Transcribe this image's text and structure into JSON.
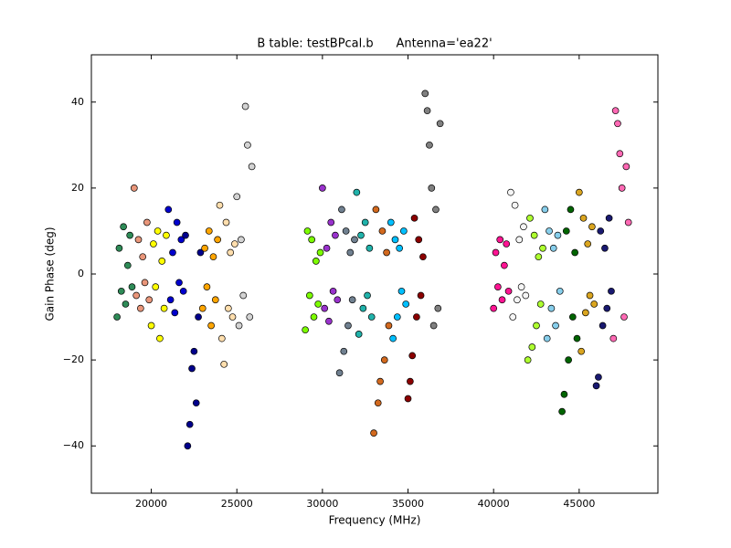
{
  "chart_data": {
    "type": "scatter",
    "title": "B table: testBPcal.b      Antenna='ea22'",
    "x_label": "Frequency (MHz)",
    "y_label": "Gain Phase (deg)",
    "xlim": [
      16500,
      49600
    ],
    "ylim": [
      -51,
      51
    ],
    "xticks": [
      20000,
      25000,
      30000,
      35000,
      40000,
      45000
    ],
    "yticks": [
      {
        "value": -40,
        "label": "−40"
      },
      {
        "value": -20,
        "label": "−20"
      },
      0,
      20,
      40
    ],
    "grid": false,
    "series": [
      {
        "color": "#2e8b57",
        "x": [
          18000,
          18125,
          18250,
          18375,
          18500,
          18625,
          18750,
          18875
        ],
        "values": [
          -10,
          6,
          -4,
          11,
          -7,
          2,
          9,
          -3
        ]
      },
      {
        "color": "#e9967a",
        "x": [
          19000,
          19125,
          19250,
          19375,
          19500,
          19625,
          19750,
          19875
        ],
        "values": [
          20,
          -5,
          8,
          -8,
          4,
          -2,
          12,
          -6
        ]
      },
      {
        "color": "#ffff00",
        "x": [
          20000,
          20125,
          20250,
          20375,
          20500,
          20625,
          20750,
          20875
        ],
        "values": [
          -12,
          7,
          -3,
          10,
          -15,
          3,
          -8,
          9
        ]
      },
      {
        "color": "#0000cd",
        "x": [
          21000,
          21125,
          21250,
          21375,
          21500,
          21625,
          21750,
          21875
        ],
        "values": [
          15,
          -6,
          5,
          -9,
          12,
          -2,
          8,
          -4
        ]
      },
      {
        "color": "#00008b",
        "x": [
          22000,
          22125,
          22250,
          22375,
          22500,
          22625,
          22750,
          22875
        ],
        "values": [
          9,
          -40,
          -35,
          -22,
          -18,
          -30,
          -10,
          5
        ]
      },
      {
        "color": "#ffa500",
        "x": [
          23000,
          23125,
          23250,
          23375,
          23500,
          23625,
          23750,
          23875
        ],
        "values": [
          -8,
          6,
          -3,
          10,
          -12,
          4,
          -6,
          8
        ]
      },
      {
        "color": "#ffdead",
        "x": [
          24000,
          24125,
          24250,
          24375,
          24500,
          24625,
          24750,
          24875
        ],
        "values": [
          16,
          -15,
          -21,
          12,
          -8,
          5,
          -10,
          7
        ]
      },
      {
        "color": "#d3d3d3",
        "x": [
          25000,
          25125,
          25250,
          25375,
          25500,
          25625,
          25750,
          25875
        ],
        "values": [
          18,
          -12,
          8,
          -5,
          39,
          30,
          -10,
          25
        ]
      },
      {
        "color": "#7cfc00",
        "x": [
          29000,
          29125,
          29250,
          29375,
          29500,
          29625,
          29750,
          29875
        ],
        "values": [
          -13,
          10,
          -5,
          8,
          -10,
          3,
          -7,
          5
        ]
      },
      {
        "color": "#9932cc",
        "x": [
          30000,
          30125,
          30250,
          30375,
          30500,
          30625,
          30750,
          30875
        ],
        "values": [
          20,
          -8,
          6,
          -11,
          12,
          -4,
          9,
          -6
        ]
      },
      {
        "color": "#708090",
        "x": [
          31000,
          31125,
          31250,
          31375,
          31500,
          31625,
          31750,
          31875
        ],
        "values": [
          -23,
          15,
          -18,
          10,
          -12,
          5,
          -6,
          8
        ]
      },
      {
        "color": "#20b2aa",
        "x": [
          32000,
          32125,
          32250,
          32375,
          32500,
          32625,
          32750,
          32875
        ],
        "values": [
          19,
          -14,
          9,
          -8,
          12,
          -5,
          6,
          -10
        ]
      },
      {
        "color": "#d2691e",
        "x": [
          33000,
          33125,
          33250,
          33375,
          33500,
          33625,
          33750,
          33875
        ],
        "values": [
          -37,
          15,
          -30,
          -25,
          10,
          -20,
          5,
          -12
        ]
      },
      {
        "color": "#00bfff",
        "x": [
          34000,
          34125,
          34250,
          34375,
          34500,
          34625,
          34750,
          34875
        ],
        "values": [
          12,
          -15,
          8,
          -10,
          6,
          -4,
          10,
          -7
        ]
      },
      {
        "color": "#8b0000",
        "x": [
          35000,
          35125,
          35250,
          35375,
          35500,
          35625,
          35750,
          35875
        ],
        "values": [
          -29,
          -25,
          -19,
          13,
          -10,
          8,
          -5,
          4
        ]
      },
      {
        "color": "#808080",
        "x": [
          36000,
          36125,
          36250,
          36375,
          36500,
          36625,
          36750,
          36875
        ],
        "values": [
          42,
          38,
          30,
          20,
          -12,
          15,
          -8,
          35
        ]
      },
      {
        "color": "#ff1493",
        "x": [
          40000,
          40125,
          40250,
          40375,
          40500,
          40625,
          40750,
          40875
        ],
        "values": [
          -8,
          5,
          -3,
          8,
          -6,
          2,
          7,
          -4
        ]
      },
      {
        "color": "#f5f5f5",
        "x": [
          41000,
          41125,
          41250,
          41375,
          41500,
          41625,
          41750,
          41875
        ],
        "values": [
          19,
          -10,
          16,
          -6,
          8,
          -3,
          11,
          -5
        ]
      },
      {
        "color": "#adff2f",
        "x": [
          42000,
          42125,
          42250,
          42375,
          42500,
          42625,
          42750,
          42875
        ],
        "values": [
          -20,
          13,
          -17,
          9,
          -12,
          4,
          -7,
          6
        ]
      },
      {
        "color": "#87ceeb",
        "x": [
          43000,
          43125,
          43250,
          43375,
          43500,
          43625,
          43750,
          43875
        ],
        "values": [
          15,
          -15,
          10,
          -8,
          6,
          -12,
          9,
          -4
        ]
      },
      {
        "color": "#006400",
        "x": [
          44000,
          44125,
          44250,
          44375,
          44500,
          44625,
          44750,
          44875
        ],
        "values": [
          -32,
          -28,
          10,
          -20,
          15,
          -10,
          5,
          -15
        ]
      },
      {
        "color": "#daa520",
        "x": [
          45000,
          45125,
          45250,
          45375,
          45500,
          45625,
          45750,
          45875
        ],
        "values": [
          19,
          -18,
          13,
          -9,
          7,
          -5,
          11,
          -7
        ]
      },
      {
        "color": "#191970",
        "x": [
          46000,
          46125,
          46250,
          46375,
          46500,
          46625,
          46750,
          46875
        ],
        "values": [
          -26,
          -24,
          10,
          -12,
          6,
          -8,
          13,
          -4
        ]
      },
      {
        "color": "#ff69b4",
        "x": [
          47000,
          47125,
          47250,
          47375,
          47500,
          47625,
          47750,
          47875
        ],
        "values": [
          -15,
          38,
          35,
          28,
          20,
          -10,
          25,
          12
        ]
      }
    ]
  }
}
